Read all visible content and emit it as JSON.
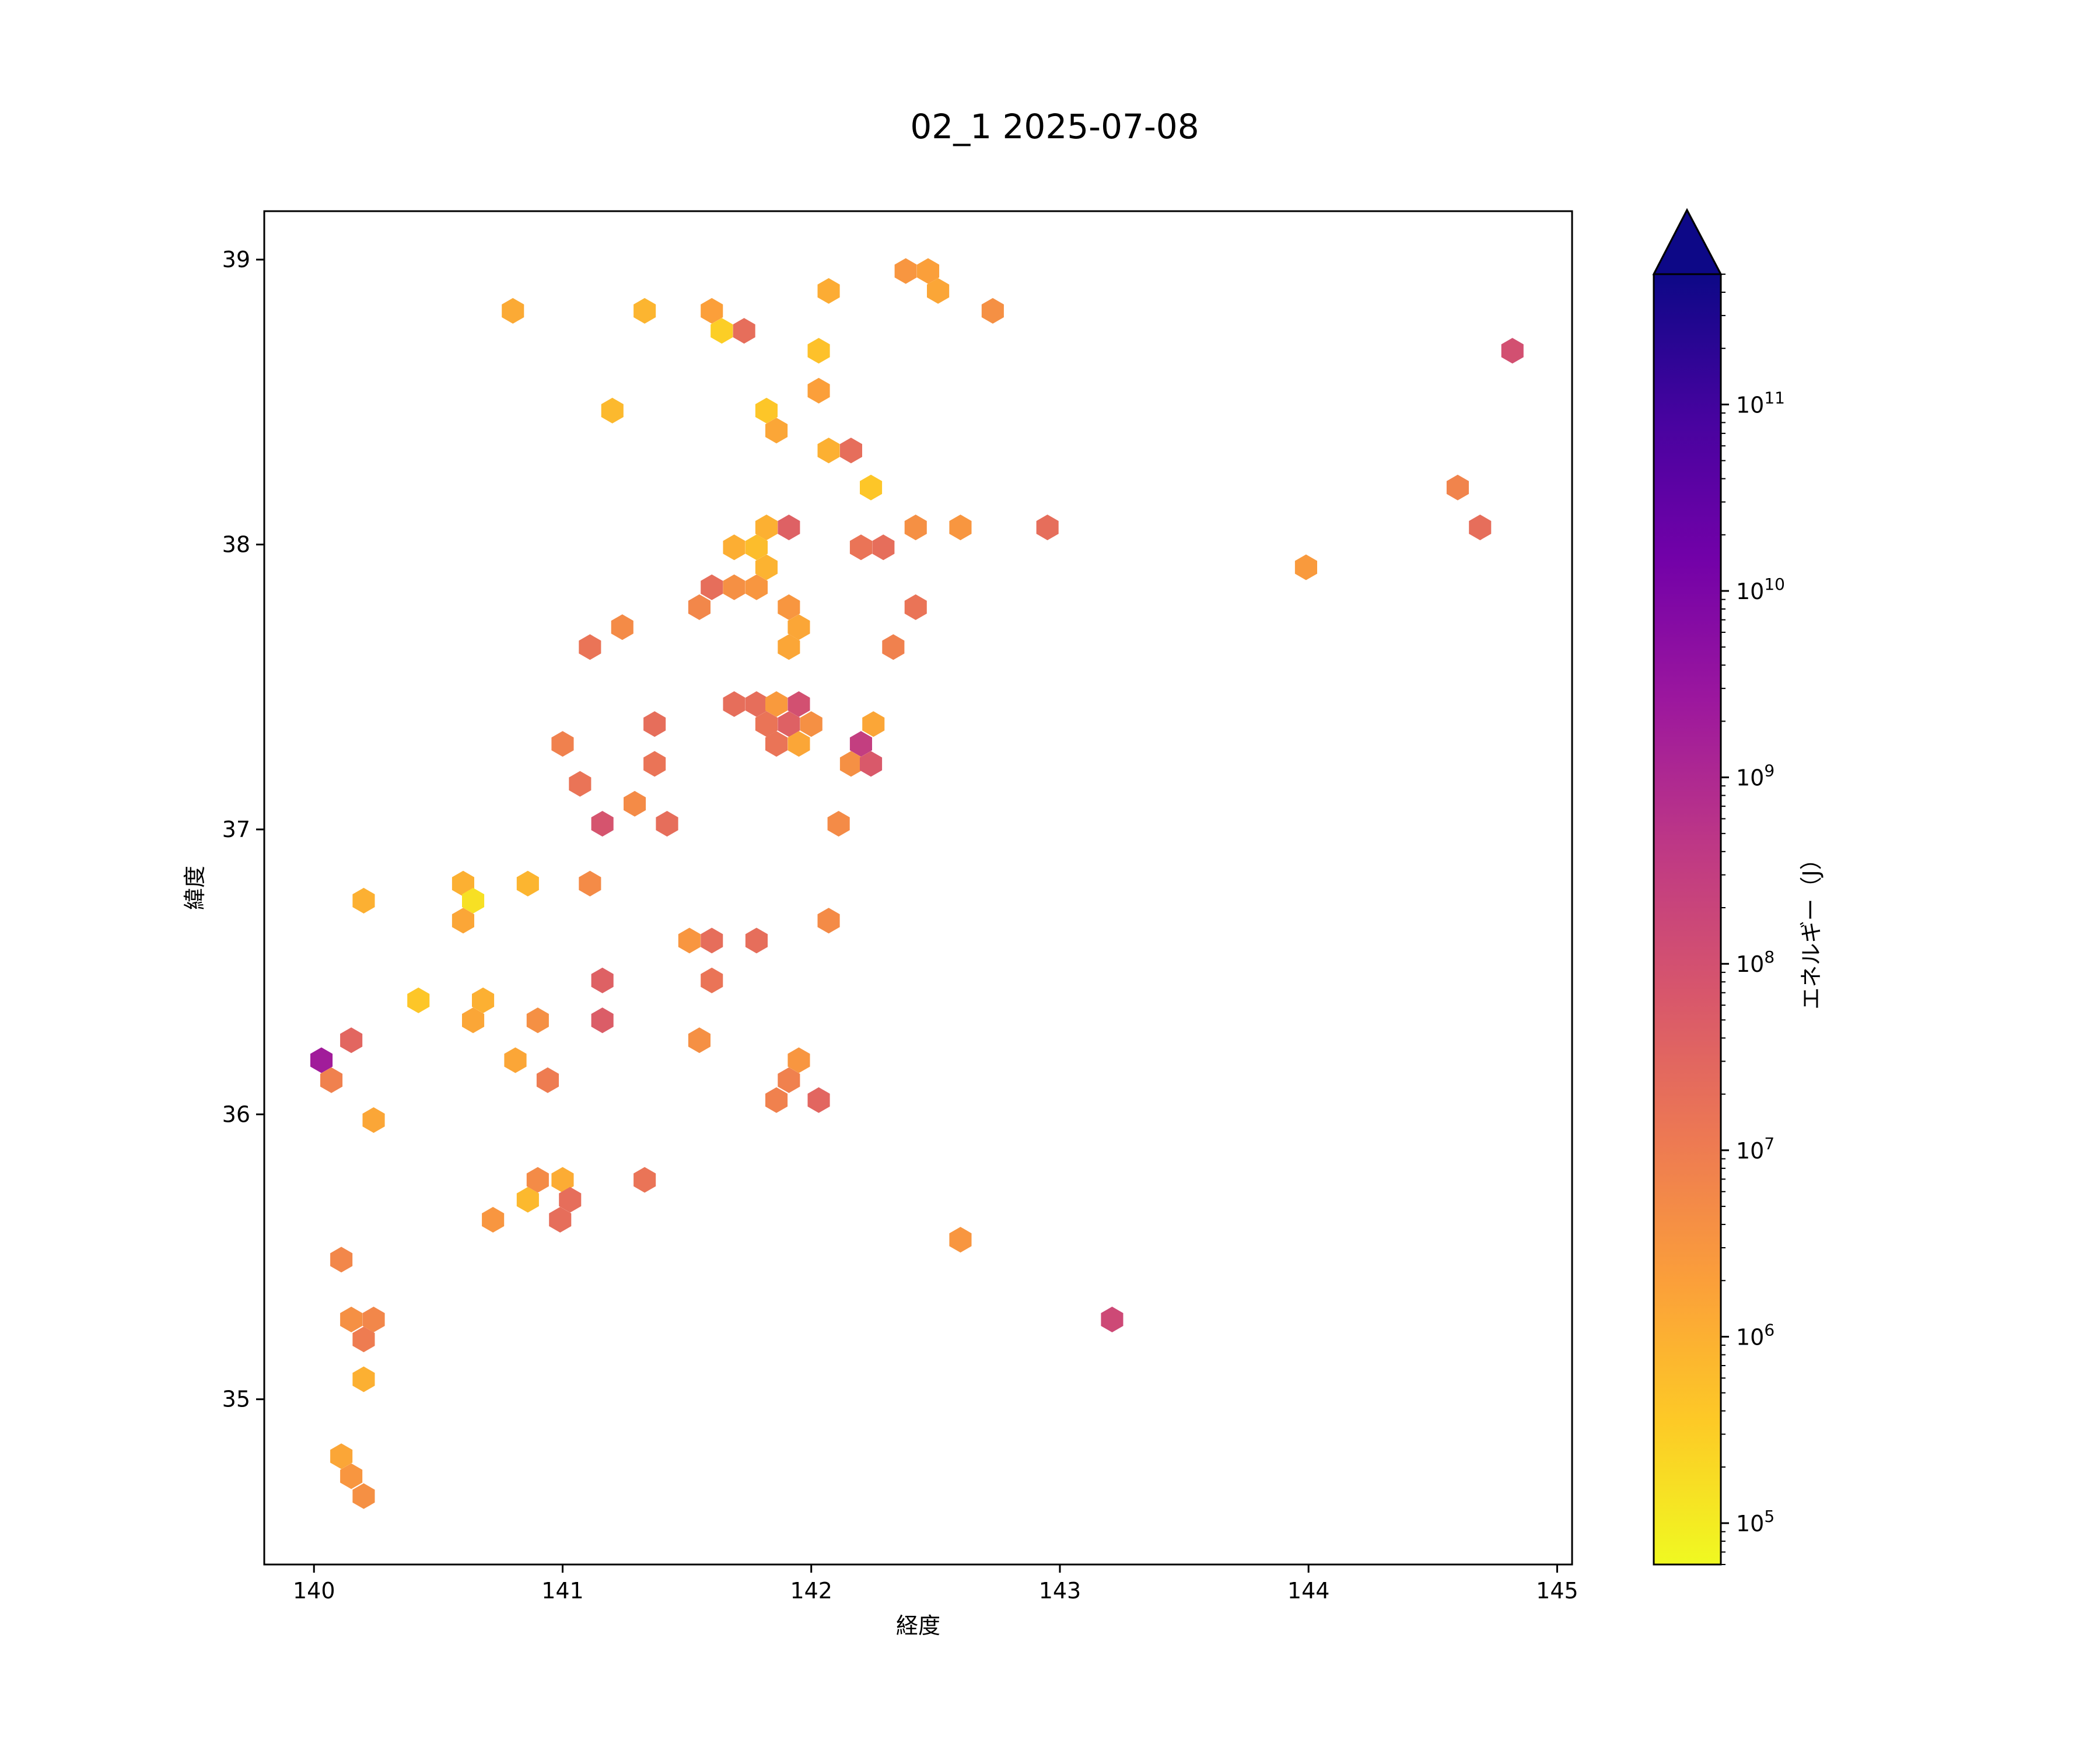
{
  "chart_data": {
    "type": "heatmap",
    "subtype": "hexbin",
    "title": "02_1 2025-07-08",
    "xlabel": "経度",
    "ylabel": "緯度",
    "xlim": [
      139.8,
      145.06
    ],
    "ylim": [
      34.42,
      39.17
    ],
    "x_ticks": [
      140,
      141,
      142,
      143,
      144,
      145
    ],
    "y_ticks": [
      35,
      36,
      37,
      38,
      39
    ],
    "colorbar": {
      "label": "エネルギー（J）",
      "scale": "log",
      "colormap": "plasma_r",
      "range": [
        60000,
        500000000000
      ],
      "extend": "max",
      "extend_color": "#0d0887",
      "tick_exponents": [
        5,
        6,
        7,
        8,
        9,
        10,
        11
      ]
    },
    "points": [
      [
        140.8,
        38.82,
        1300000
      ],
      [
        141.33,
        38.82,
        800000
      ],
      [
        141.6,
        38.82,
        2000000
      ],
      [
        141.64,
        38.75,
        300000
      ],
      [
        141.73,
        38.75,
        20000000
      ],
      [
        142.07,
        38.89,
        1200000
      ],
      [
        142.38,
        38.96,
        3000000
      ],
      [
        142.47,
        38.96,
        2000000
      ],
      [
        142.51,
        38.89,
        1500000
      ],
      [
        142.73,
        38.82,
        4000000
      ],
      [
        144.82,
        38.68,
        100000000
      ],
      [
        142.03,
        38.68,
        500000
      ],
      [
        142.03,
        38.54,
        2000000
      ],
      [
        141.2,
        38.47,
        700000
      ],
      [
        141.82,
        38.47,
        400000
      ],
      [
        141.86,
        38.4,
        1500000
      ],
      [
        142.07,
        38.33,
        1000000
      ],
      [
        142.16,
        38.33,
        20000000
      ],
      [
        142.24,
        38.2,
        400000
      ],
      [
        144.6,
        38.2,
        7000000
      ],
      [
        141.82,
        38.06,
        1000000
      ],
      [
        141.91,
        38.06,
        40000000
      ],
      [
        142.42,
        38.06,
        4000000
      ],
      [
        142.6,
        38.06,
        3000000
      ],
      [
        142.95,
        38.06,
        20000000
      ],
      [
        144.69,
        38.06,
        20000000
      ],
      [
        141.69,
        37.99,
        1100000
      ],
      [
        141.78,
        37.99,
        600000
      ],
      [
        142.2,
        37.99,
        15000000
      ],
      [
        142.29,
        37.99,
        20000000
      ],
      [
        143.99,
        37.92,
        2500000
      ],
      [
        141.82,
        37.92,
        900000
      ],
      [
        141.6,
        37.85,
        20000000
      ],
      [
        141.69,
        37.85,
        4000000
      ],
      [
        141.78,
        37.85,
        3000000
      ],
      [
        141.55,
        37.78,
        6000000
      ],
      [
        141.91,
        37.78,
        3000000
      ],
      [
        142.42,
        37.78,
        15000000
      ],
      [
        141.24,
        37.71,
        5000000
      ],
      [
        141.95,
        37.71,
        1500000
      ],
      [
        141.11,
        37.64,
        15000000
      ],
      [
        141.91,
        37.64,
        1500000
      ],
      [
        142.33,
        37.64,
        8000000
      ],
      [
        141.69,
        37.44,
        20000000
      ],
      [
        141.78,
        37.44,
        20000000
      ],
      [
        141.86,
        37.44,
        2500000
      ],
      [
        141.95,
        37.44,
        100000000
      ],
      [
        141.82,
        37.37,
        15000000
      ],
      [
        141.91,
        37.37,
        40000000
      ],
      [
        142.0,
        37.37,
        4000000
      ],
      [
        141.37,
        37.37,
        20000000
      ],
      [
        142.25,
        37.37,
        1500000
      ],
      [
        141.0,
        37.3,
        8000000
      ],
      [
        141.86,
        37.3,
        15000000
      ],
      [
        141.95,
        37.3,
        1500000
      ],
      [
        142.2,
        37.3,
        300000000
      ],
      [
        141.37,
        37.23,
        15000000
      ],
      [
        142.16,
        37.23,
        4000000
      ],
      [
        142.24,
        37.23,
        60000000
      ],
      [
        141.07,
        37.16,
        15000000
      ],
      [
        141.29,
        37.09,
        5000000
      ],
      [
        141.16,
        37.02,
        80000000
      ],
      [
        141.42,
        37.02,
        20000000
      ],
      [
        142.11,
        37.02,
        5000000
      ],
      [
        140.2,
        36.75,
        1000000
      ],
      [
        140.6,
        36.81,
        1000000
      ],
      [
        140.64,
        36.75,
        150000
      ],
      [
        140.6,
        36.68,
        1500000
      ],
      [
        140.86,
        36.81,
        800000
      ],
      [
        141.11,
        36.81,
        5000000
      ],
      [
        142.07,
        36.68,
        5000000
      ],
      [
        141.51,
        36.61,
        3000000
      ],
      [
        141.6,
        36.61,
        20000000
      ],
      [
        141.78,
        36.61,
        20000000
      ],
      [
        141.16,
        36.47,
        40000000
      ],
      [
        141.6,
        36.47,
        15000000
      ],
      [
        140.42,
        36.4,
        400000
      ],
      [
        140.68,
        36.4,
        1000000
      ],
      [
        140.64,
        36.33,
        1500000
      ],
      [
        140.9,
        36.33,
        4000000
      ],
      [
        141.16,
        36.33,
        50000000
      ],
      [
        140.15,
        36.26,
        30000000
      ],
      [
        141.55,
        36.26,
        4000000
      ],
      [
        140.03,
        36.19,
        2000000000
      ],
      [
        140.81,
        36.19,
        1500000
      ],
      [
        141.95,
        36.19,
        3000000
      ],
      [
        140.07,
        36.12,
        8000000
      ],
      [
        140.94,
        36.12,
        10000000
      ],
      [
        141.91,
        36.12,
        8000000
      ],
      [
        141.86,
        36.05,
        8000000
      ],
      [
        142.03,
        36.05,
        30000000
      ],
      [
        140.24,
        35.98,
        1500000
      ],
      [
        140.9,
        35.77,
        5000000
      ],
      [
        141.0,
        35.77,
        1200000
      ],
      [
        141.33,
        35.77,
        15000000
      ],
      [
        140.86,
        35.7,
        700000
      ],
      [
        141.03,
        35.7,
        20000000
      ],
      [
        140.72,
        35.63,
        3000000
      ],
      [
        140.99,
        35.63,
        20000000
      ],
      [
        142.6,
        35.56,
        3000000
      ],
      [
        140.11,
        35.49,
        6000000
      ],
      [
        143.21,
        35.28,
        150000000
      ],
      [
        140.15,
        35.28,
        4000000
      ],
      [
        140.24,
        35.28,
        6000000
      ],
      [
        140.2,
        35.21,
        10000000
      ],
      [
        140.2,
        35.07,
        1000000
      ],
      [
        140.11,
        34.8,
        1500000
      ],
      [
        140.15,
        34.73,
        3000000
      ],
      [
        140.2,
        34.66,
        4000000
      ]
    ]
  }
}
